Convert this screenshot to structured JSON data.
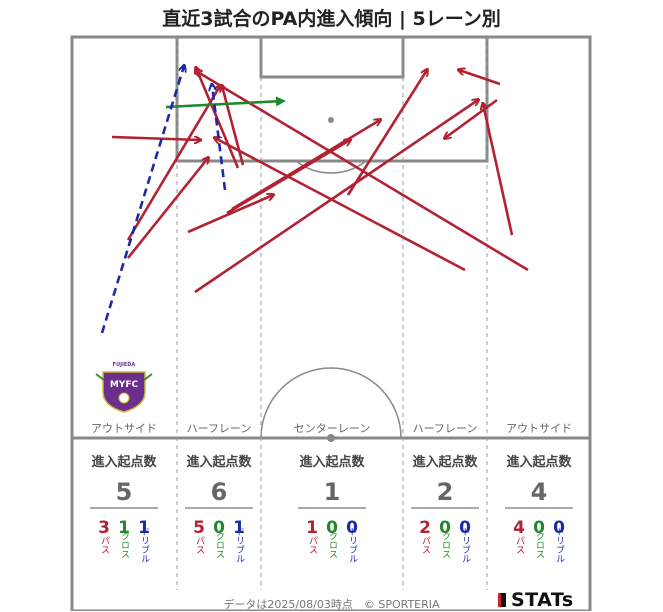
{
  "title": "直近3試合のPA内進入傾向 | 5レーン別",
  "lanes": [
    {
      "label": "アウトサイド",
      "header": "進入起点数",
      "total": "5",
      "breakdown": [
        {
          "value": "3",
          "type": "パス",
          "color": "#b22233"
        },
        {
          "value": "1",
          "type": "クロス",
          "color": "#1f8a2a"
        },
        {
          "value": "1",
          "type": "ドリブル",
          "color": "#1a2aa8"
        }
      ]
    },
    {
      "label": "ハーフレーン",
      "header": "進入起点数",
      "total": "6",
      "breakdown": [
        {
          "value": "5",
          "type": "パス",
          "color": "#b22233"
        },
        {
          "value": "0",
          "type": "クロス",
          "color": "#1f8a2a"
        },
        {
          "value": "1",
          "type": "ドリブル",
          "color": "#1a2aa8"
        }
      ]
    },
    {
      "label": "センターレーン",
      "header": "進入起点数",
      "total": "1",
      "breakdown": [
        {
          "value": "1",
          "type": "パス",
          "color": "#b22233"
        },
        {
          "value": "0",
          "type": "クロス",
          "color": "#1f8a2a"
        },
        {
          "value": "0",
          "type": "ドリブル",
          "color": "#1a2aa8"
        }
      ]
    },
    {
      "label": "ハーフレーン",
      "header": "進入起点数",
      "total": "2",
      "breakdown": [
        {
          "value": "2",
          "type": "パス",
          "color": "#b22233"
        },
        {
          "value": "0",
          "type": "クロス",
          "color": "#1f8a2a"
        },
        {
          "value": "0",
          "type": "ドリブル",
          "color": "#1a2aa8"
        }
      ]
    },
    {
      "label": "アウトサイド",
      "header": "進入起点数",
      "total": "4",
      "breakdown": [
        {
          "value": "4",
          "type": "パス",
          "color": "#b22233"
        },
        {
          "value": "0",
          "type": "クロス",
          "color": "#1f8a2a"
        },
        {
          "value": "0",
          "type": "ドリブル",
          "color": "#1a2aa8"
        }
      ]
    }
  ],
  "colors": {
    "pass": "#b22233",
    "cross": "#1f8a2a",
    "dribble": "#1a2aa8",
    "pitch_line": "#888888"
  },
  "arrow_types": [
    "pass",
    "cross",
    "dribble"
  ],
  "club_logo": {
    "name": "club-crest-icon",
    "text": "FUJIEDA MYFC"
  },
  "footer": "データは2025/08/03時点　© SPORTERIA",
  "brand": "STATs"
}
